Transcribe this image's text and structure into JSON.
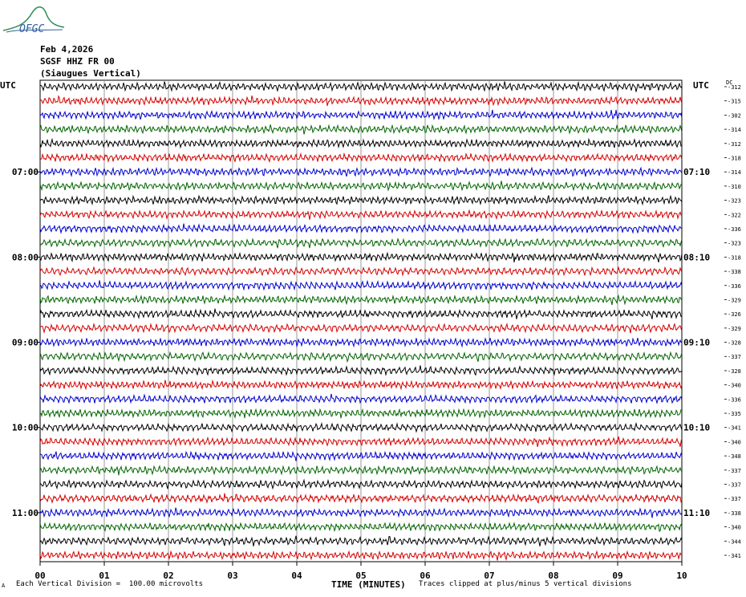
{
  "logo_text": "OFGC",
  "header": {
    "date": "Feb 4,2026",
    "station": "SGSF HHZ FR 00",
    "location": "(Siaugues Vertical)"
  },
  "utc_left_label": "UTC",
  "utc_right_label": "UTC",
  "dc_label": "DC",
  "colors": {
    "black": "#000000",
    "red": "#d40000",
    "blue": "#0000cc",
    "green": "#006400",
    "grid": "#808080"
  },
  "chart_data": {
    "type": "line",
    "xlabel": "TIME (MINUTES)",
    "x_ticks": [
      "00",
      "01",
      "02",
      "03",
      "04",
      "05",
      "06",
      "07",
      "08",
      "09",
      "10"
    ],
    "xlim": [
      0,
      10
    ],
    "left_hour_labels": [
      {
        "row": 6,
        "label": "07:00"
      },
      {
        "row": 12,
        "label": "08:00"
      },
      {
        "row": 18,
        "label": "09:00"
      },
      {
        "row": 24,
        "label": "10:00"
      },
      {
        "row": 30,
        "label": "11:00"
      }
    ],
    "right_hour_labels": [
      {
        "row": 6,
        "label": "07:10"
      },
      {
        "row": 12,
        "label": "08:10"
      },
      {
        "row": 18,
        "label": "09:10"
      },
      {
        "row": 24,
        "label": "10:10"
      },
      {
        "row": 30,
        "label": "11:10"
      }
    ],
    "dc_offsets": [
      "-312",
      "-315",
      "-302",
      "-314",
      "-312",
      "-318",
      "-314",
      "-310",
      "-323",
      "-322",
      "-336",
      "-323",
      "-318",
      "-338",
      "-336",
      "-329",
      "-326",
      "-329",
      "-328",
      "-337",
      "-328",
      "-340",
      "-336",
      "-335",
      "-341",
      "-340",
      "-348",
      "-337",
      "-337",
      "-337",
      "-338",
      "-340",
      "-344",
      "-341"
    ],
    "trace_colors": [
      "black",
      "red",
      "blue",
      "green"
    ]
  },
  "footer": {
    "left_mark": "A",
    "division": "Each Vertical Division =  100.00 microvolts",
    "xlabel": "TIME (MINUTES)",
    "clip_note": "Traces clipped at plus/minus 5 vertical divisions"
  }
}
